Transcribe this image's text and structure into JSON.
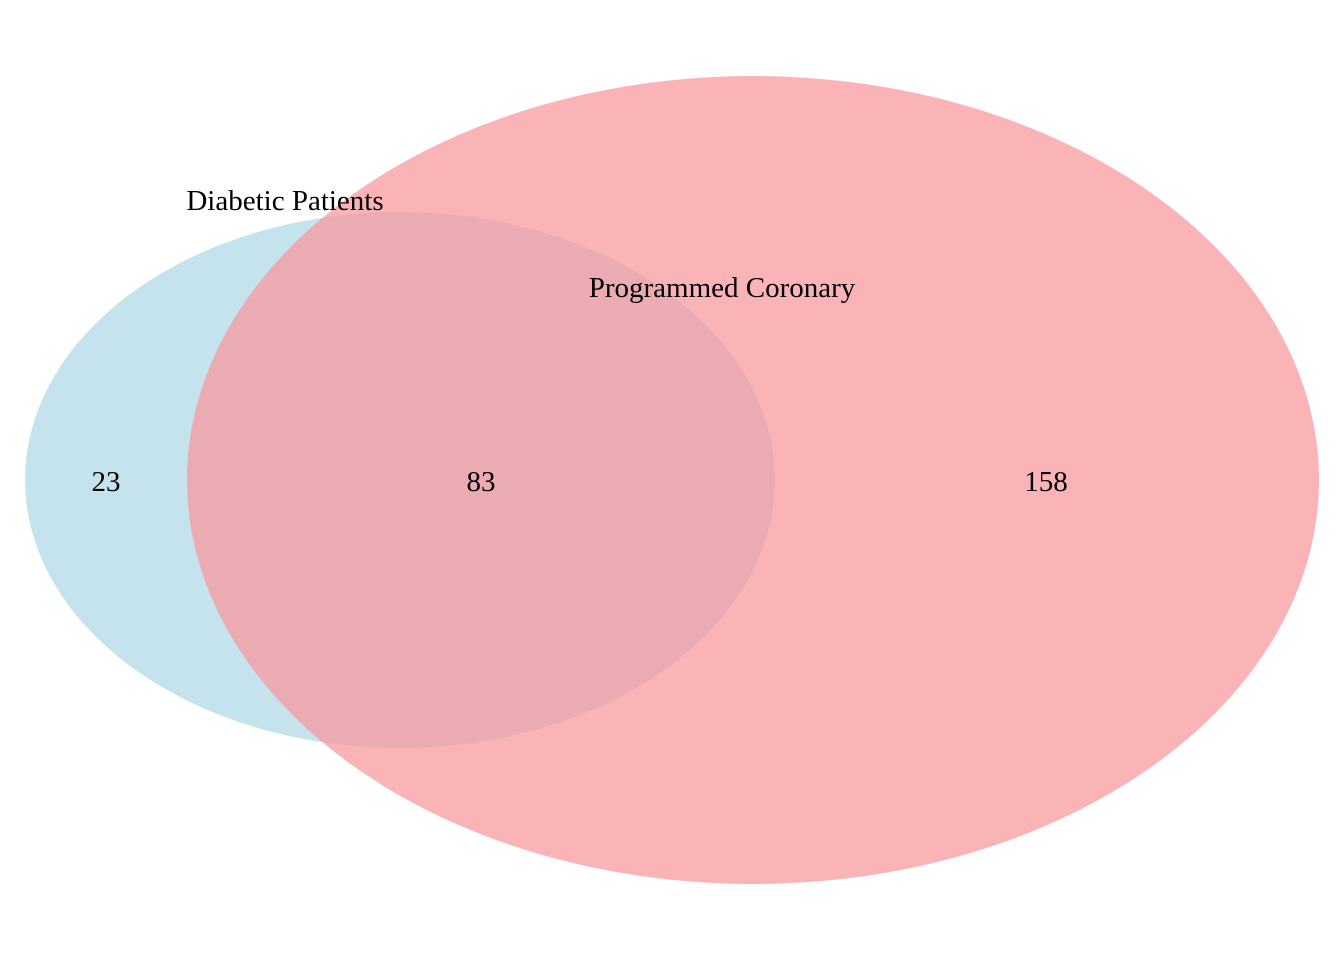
{
  "diagram": {
    "type": "venn",
    "sets": [
      {
        "id": "a",
        "label": "Diabetic Patients",
        "color": "#add8e6"
      },
      {
        "id": "b",
        "label": "Programmed Coronary",
        "color": "#f8979b"
      }
    ],
    "regions": {
      "a_only": "23",
      "a_and_b": "83",
      "b_only": "158"
    }
  }
}
